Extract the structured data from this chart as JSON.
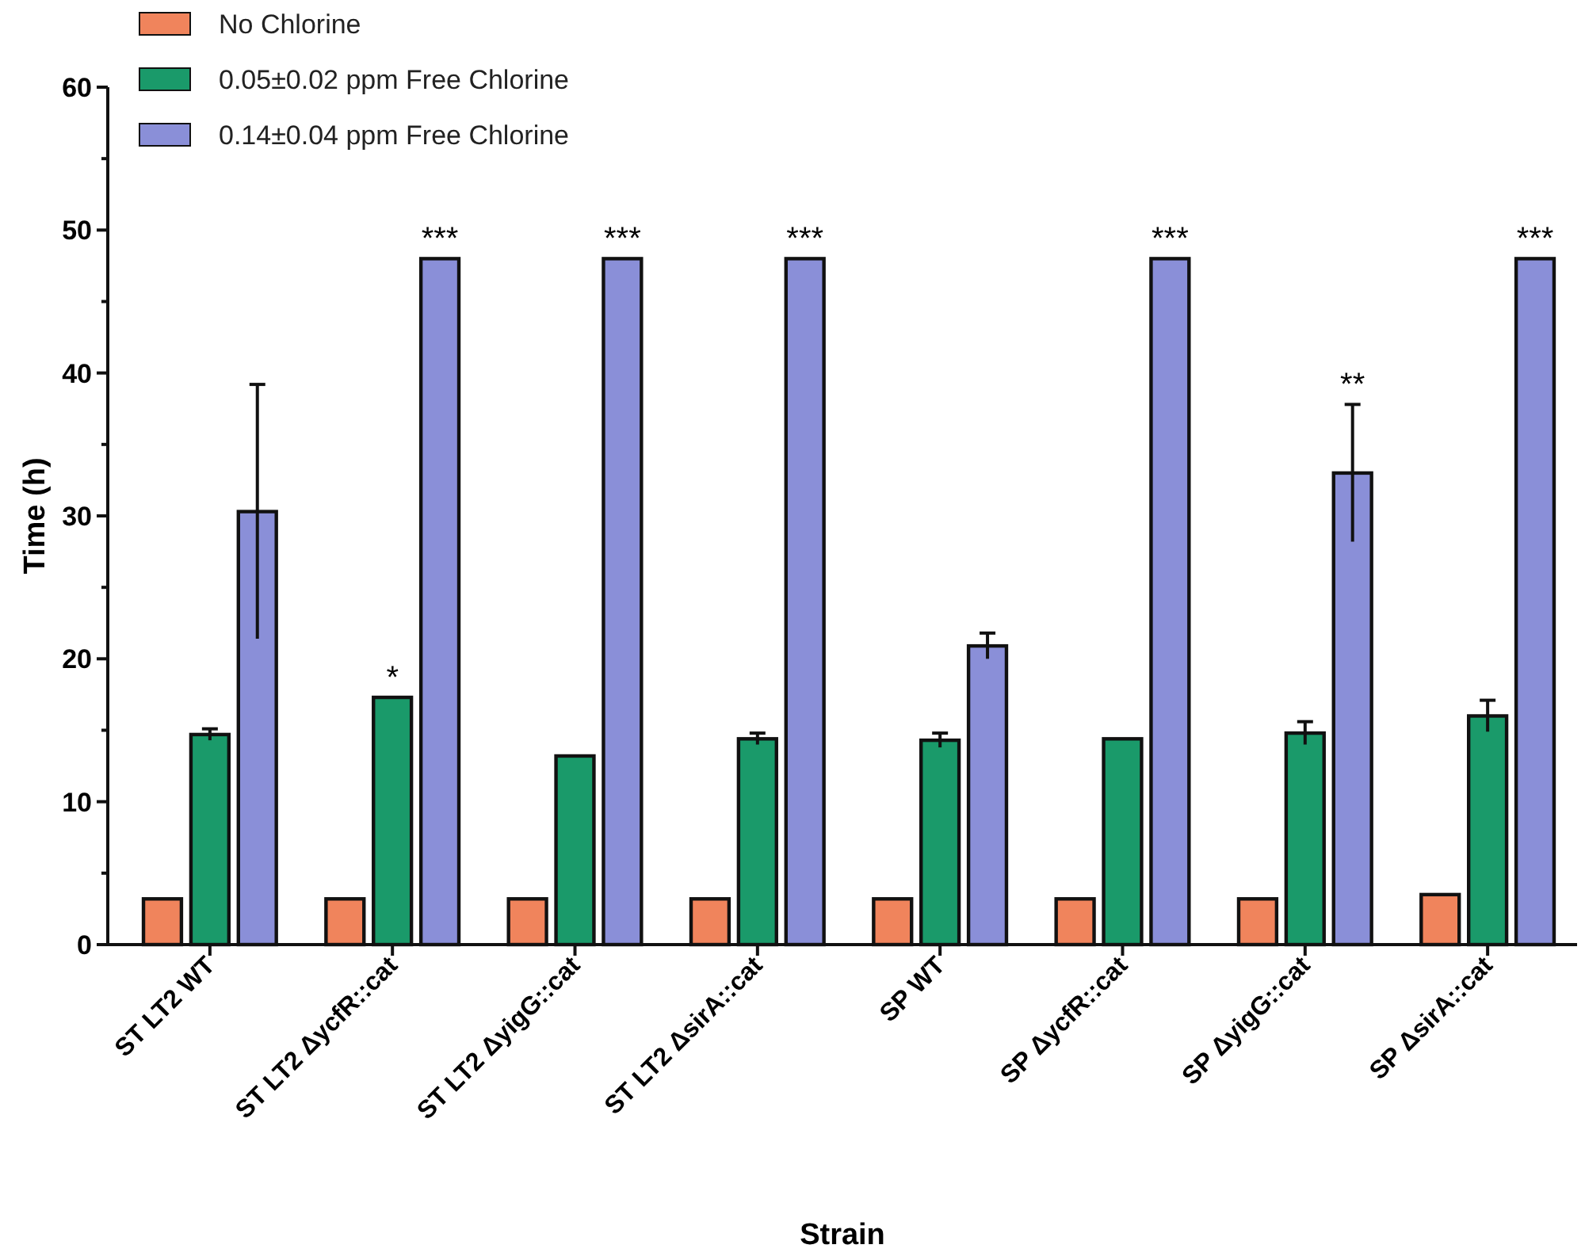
{
  "chart_data": {
    "type": "bar",
    "xlabel": "Strain",
    "ylabel": "Time (h)",
    "categories": [
      "ST LT2 WT",
      "ST LT2 ΔycfR::cat",
      "ST LT2 ΔyigG::cat",
      "ST LT2 ΔsirA::cat",
      "SP WT",
      "SP ΔycfR::cat",
      "SP ΔyigG::cat",
      "SP ΔsirA::cat"
    ],
    "series": [
      {
        "name": "No Chlorine",
        "color": "#f0845c",
        "values": [
          3.2,
          3.2,
          3.2,
          3.2,
          3.2,
          3.2,
          3.2,
          3.5
        ]
      },
      {
        "name": "0.05±0.02 ppm Free Chlorine",
        "color": "#1a9a6a",
        "values": [
          14.7,
          17.3,
          13.2,
          14.4,
          14.3,
          14.4,
          14.8,
          16.0
        ],
        "errors": [
          0.4,
          null,
          null,
          0.4,
          0.5,
          null,
          0.8,
          1.1
        ],
        "value_labels": [
          null,
          "*",
          null,
          null,
          null,
          null,
          null,
          null
        ]
      },
      {
        "name": "0.14±0.04 ppm Free Chlorine",
        "color": "#8a8fd8",
        "values": [
          30.3,
          48,
          48,
          48,
          20.9,
          48,
          33.0,
          48
        ],
        "errors": [
          8.9,
          null,
          null,
          null,
          0.9,
          null,
          4.8,
          null
        ],
        "value_labels": [
          null,
          "***",
          "***",
          "***",
          null,
          "***",
          "**",
          "***"
        ]
      }
    ],
    "ylim": [
      0,
      60
    ],
    "yticks": [
      0,
      10,
      20,
      30,
      40,
      50,
      60
    ],
    "legend": "top left"
  }
}
